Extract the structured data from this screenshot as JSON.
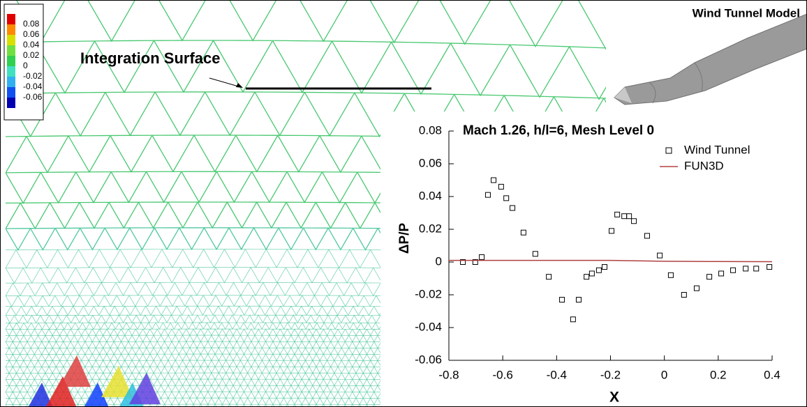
{
  "chart_data": {
    "type": "scatter",
    "title": "Mach 1.26, h/l=6, Mesh Level 0",
    "xlabel": "X",
    "ylabel": "ΔP/P",
    "xlim": [
      -0.8,
      0.4
    ],
    "xticks": [
      -0.8,
      -0.6,
      -0.4,
      -0.2,
      0,
      0.2,
      0.4
    ],
    "ylim": [
      -0.06,
      0.08
    ],
    "yticks": [
      -0.06,
      -0.04,
      -0.02,
      0,
      0.02,
      0.04,
      0.06,
      0.08
    ],
    "legend": "upper right",
    "series": [
      {
        "name": "Wind Tunnel",
        "type": "scatter",
        "color": "#000000",
        "x": [
          -0.748,
          -0.702,
          -0.678,
          -0.655,
          -0.634,
          -0.606,
          -0.587,
          -0.564,
          -0.523,
          -0.479,
          -0.429,
          -0.38,
          -0.339,
          -0.318,
          -0.289,
          -0.269,
          -0.243,
          -0.222,
          -0.196,
          -0.175,
          -0.149,
          -0.131,
          -0.113,
          -0.064,
          -0.017,
          0.024,
          0.073,
          0.12,
          0.167,
          0.211,
          0.255,
          0.302,
          0.341,
          0.39
        ],
        "values": [
          0.0,
          0.0,
          0.003,
          0.041,
          0.05,
          0.046,
          0.039,
          0.033,
          0.018,
          0.005,
          -0.009,
          -0.023,
          -0.035,
          -0.023,
          -0.009,
          -0.007,
          -0.005,
          -0.003,
          0.019,
          0.029,
          0.028,
          0.028,
          0.025,
          0.016,
          0.004,
          -0.008,
          -0.02,
          -0.016,
          -0.009,
          -0.007,
          -0.005,
          -0.004,
          -0.004,
          -0.003
        ]
      },
      {
        "name": "FUN3D",
        "type": "line",
        "color": "#b04040",
        "x": [
          -0.8,
          -0.6,
          -0.4,
          -0.2,
          0,
          0.2,
          0.4
        ],
        "values": [
          0.001,
          0.001,
          0.001,
          0.001,
          0.0005,
          0.0003,
          0.0002
        ]
      }
    ]
  },
  "colorbar": {
    "ticks": [
      0.08,
      0.06,
      0.04,
      0.02,
      0,
      -0.02,
      -0.04,
      -0.06
    ],
    "colors": [
      "#e00000",
      "#ff8a00",
      "#d8e000",
      "#70e040",
      "#30d050",
      "#40e0c0",
      "#30b0f0",
      "#1050f0",
      "#0000b0"
    ]
  },
  "annotations": {
    "integration_surface": "Integration Surface",
    "model": "Wind Tunnel Model"
  }
}
